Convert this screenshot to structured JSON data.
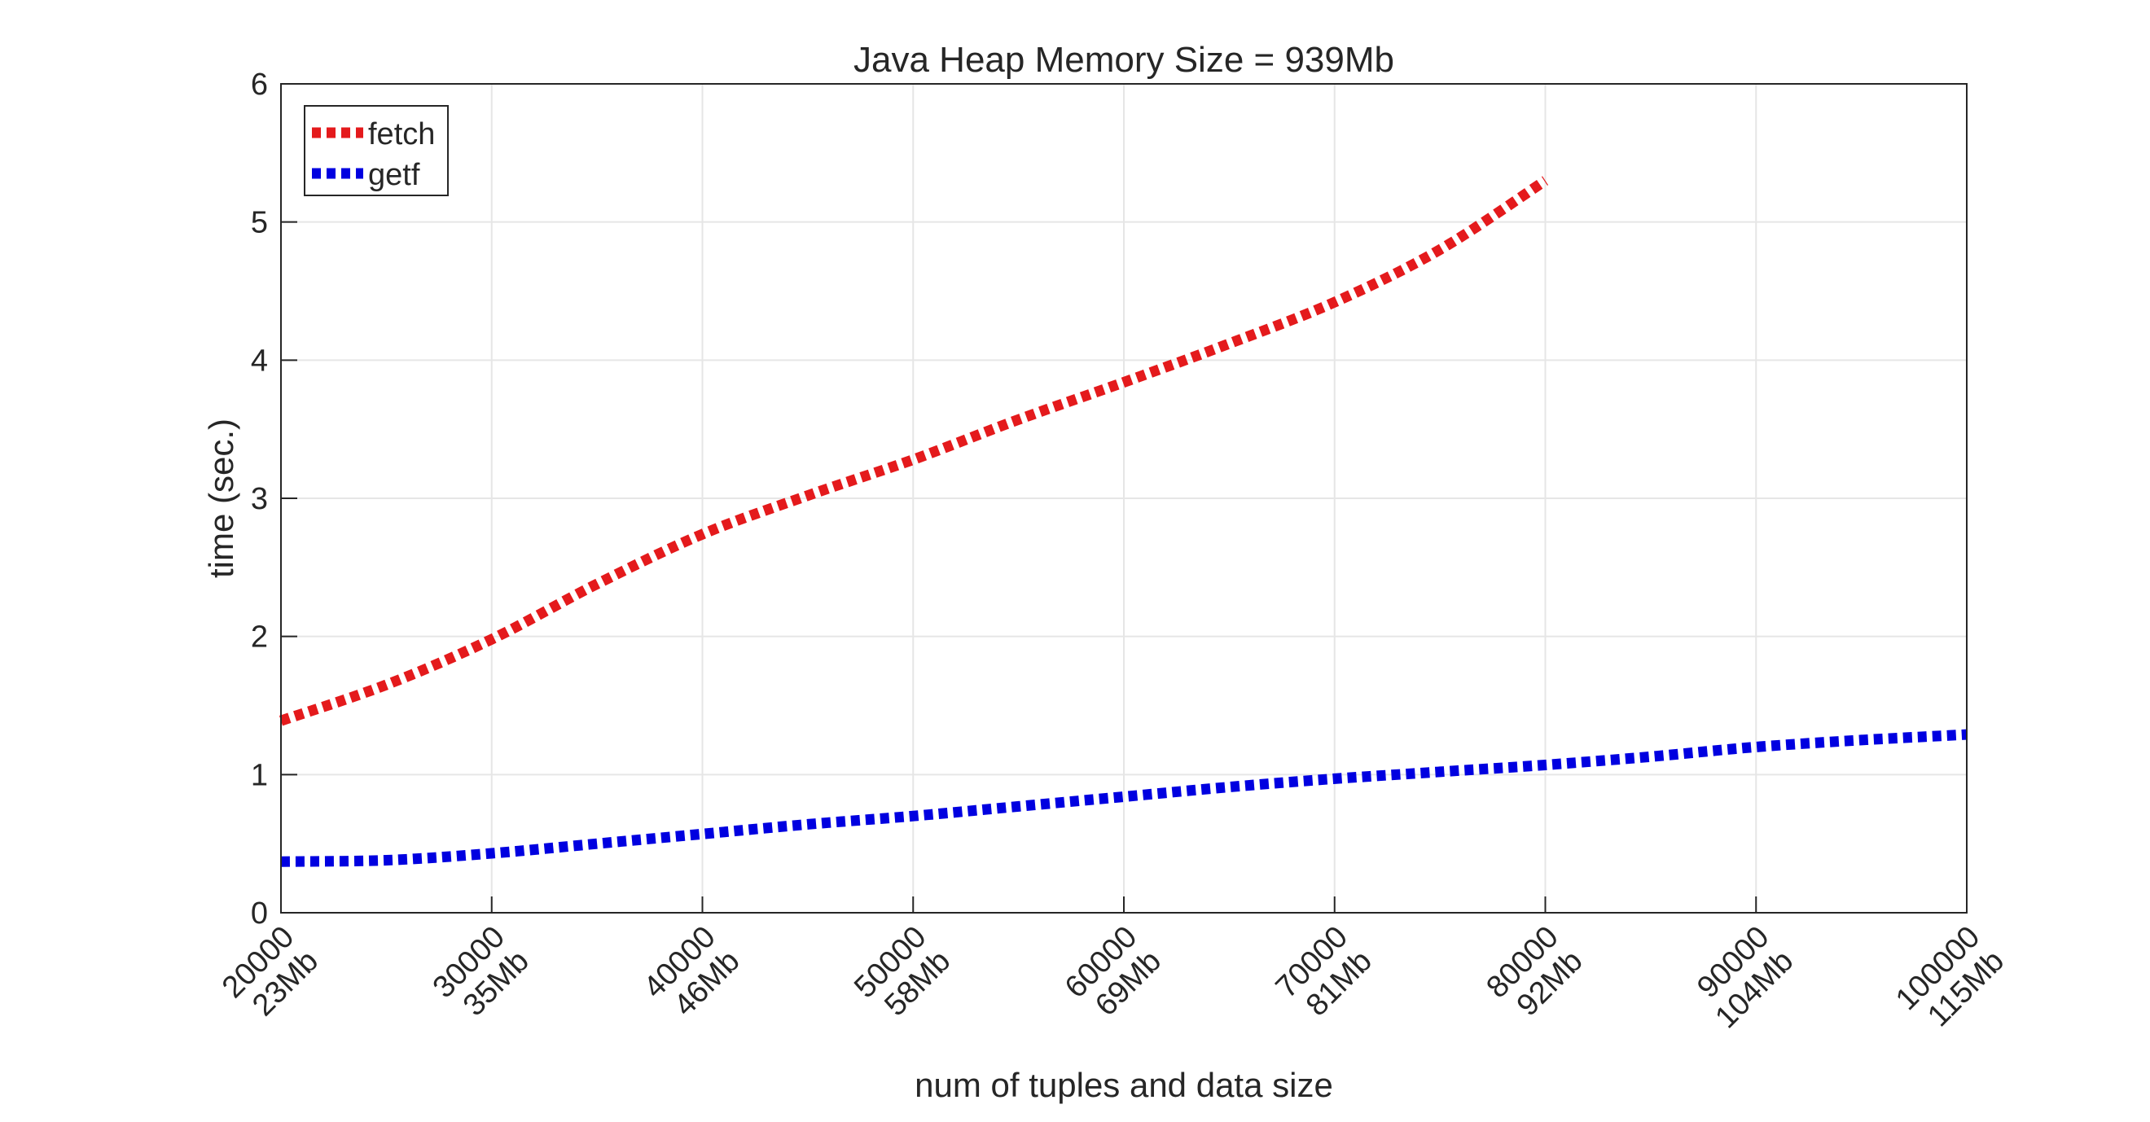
{
  "chart_data": {
    "type": "line",
    "title": "Java Heap Memory Size = 939Mb",
    "xlabel": "num of tuples and data size",
    "ylabel": "time (sec.)",
    "xlim": [
      20000,
      100000
    ],
    "ylim": [
      0,
      6
    ],
    "grid": true,
    "legend_position": "top-left",
    "x_ticks": [
      {
        "value": 20000,
        "label": "20000",
        "sublabel": "23Mb"
      },
      {
        "value": 30000,
        "label": "30000",
        "sublabel": "35Mb"
      },
      {
        "value": 40000,
        "label": "40000",
        "sublabel": "46Mb"
      },
      {
        "value": 50000,
        "label": "50000",
        "sublabel": "58Mb"
      },
      {
        "value": 60000,
        "label": "60000",
        "sublabel": "69Mb"
      },
      {
        "value": 70000,
        "label": "70000",
        "sublabel": "81Mb"
      },
      {
        "value": 80000,
        "label": "80000",
        "sublabel": "92Mb"
      },
      {
        "value": 90000,
        "label": "90000",
        "sublabel": "104Mb"
      },
      {
        "value": 100000,
        "label": "100000",
        "sublabel": "115Mb"
      }
    ],
    "y_ticks": [
      {
        "value": 0,
        "label": "0"
      },
      {
        "value": 1,
        "label": "1"
      },
      {
        "value": 2,
        "label": "2"
      },
      {
        "value": 3,
        "label": "3"
      },
      {
        "value": 4,
        "label": "4"
      },
      {
        "value": 5,
        "label": "5"
      },
      {
        "value": 6,
        "label": "6"
      }
    ],
    "series": [
      {
        "name": "fetch",
        "color": "#e41a1c",
        "line_style": "dotted",
        "x": [
          20000,
          25000,
          30000,
          35000,
          40000,
          45000,
          50000,
          55000,
          60000,
          65000,
          70000,
          75000,
          80000
        ],
        "y": [
          1.39,
          1.65,
          1.98,
          2.38,
          2.74,
          3.02,
          3.28,
          3.57,
          3.84,
          4.12,
          4.42,
          4.8,
          5.3
        ]
      },
      {
        "name": "getf",
        "color": "#0000e0",
        "line_style": "dotted",
        "x": [
          20000,
          25000,
          30000,
          35000,
          40000,
          45000,
          50000,
          55000,
          60000,
          65000,
          70000,
          75000,
          80000,
          85000,
          90000,
          95000,
          100000
        ],
        "y": [
          0.37,
          0.38,
          0.43,
          0.5,
          0.57,
          0.64,
          0.7,
          0.77,
          0.84,
          0.91,
          0.97,
          1.02,
          1.07,
          1.13,
          1.2,
          1.25,
          1.29
        ]
      }
    ]
  }
}
